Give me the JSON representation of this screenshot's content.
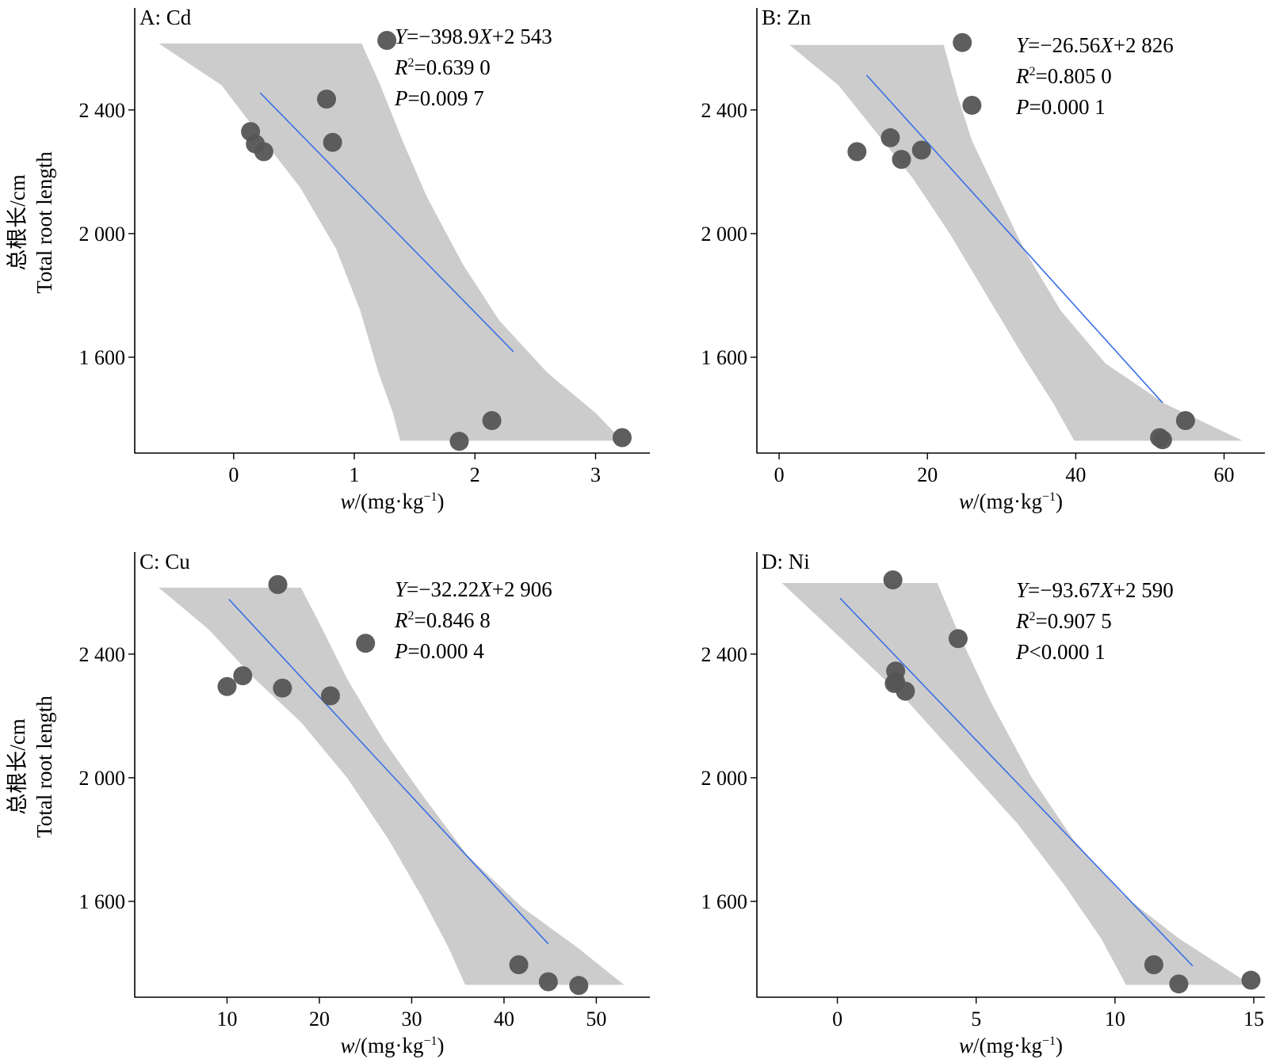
{
  "chart_data": [
    {
      "type": "scatter",
      "panel_label": "A: Cd",
      "xlabel_var": "w",
      "xlabel_unit": "/(mg·kg",
      "xlabel_exp": "−1",
      "xlabel_close": ")",
      "ylabel_cn": "总根长/cm",
      "ylabel_en": "Total root length",
      "xlim": [
        -0.82,
        3.45
      ],
      "ylim": [
        1290,
        2730
      ],
      "xticks": [
        0,
        1,
        2,
        3
      ],
      "xtick_labels": [
        "0",
        "1",
        "2",
        "3"
      ],
      "yticks": [
        1600,
        2000,
        2400
      ],
      "ytick_labels": [
        "1 600",
        "2 000",
        "2 400"
      ],
      "points": [
        {
          "x": 0.14,
          "y": 2330
        },
        {
          "x": 0.18,
          "y": 2290
        },
        {
          "x": 0.25,
          "y": 2265
        },
        {
          "x": 0.77,
          "y": 2435
        },
        {
          "x": 0.82,
          "y": 2295
        },
        {
          "x": 1.27,
          "y": 2625
        },
        {
          "x": 1.87,
          "y": 1328
        },
        {
          "x": 2.14,
          "y": 1395
        },
        {
          "x": 3.22,
          "y": 1340
        }
      ],
      "fit": {
        "slope": -398.9,
        "intercept": 2543,
        "x_range": [
          0.22,
          2.32
        ]
      },
      "band": {
        "upper": [
          [
            -0.62,
            2615
          ],
          [
            1.06,
            2615
          ],
          [
            1.2,
            2495
          ],
          [
            1.4,
            2300
          ],
          [
            1.6,
            2120
          ],
          [
            1.9,
            1900
          ],
          [
            2.2,
            1720
          ],
          [
            2.6,
            1550
          ],
          [
            3.0,
            1420
          ],
          [
            3.22,
            1330
          ]
        ],
        "lower": [
          [
            -0.62,
            2615
          ],
          [
            -0.1,
            2480
          ],
          [
            0.25,
            2300
          ],
          [
            0.55,
            2150
          ],
          [
            0.85,
            1950
          ],
          [
            1.05,
            1750
          ],
          [
            1.2,
            1550
          ],
          [
            1.32,
            1420
          ],
          [
            1.38,
            1330
          ],
          [
            3.22,
            1330
          ]
        ]
      },
      "equation": {
        "y_var": "Y",
        "rhs_pre": "=−398.9",
        "x_var": "X",
        "rhs_post": "+2 543"
      },
      "r2": {
        "var": "R",
        "sup": "2",
        "value": "=0.639 0"
      },
      "pval": {
        "var": "P",
        "value": "=0.009 7"
      },
      "colors": {
        "band": "#cccccc",
        "line": "#3b6fe6",
        "point": "#555555"
      }
    },
    {
      "type": "scatter",
      "panel_label": "B: Zn",
      "xlabel_var": "w",
      "xlabel_unit": "/(mg·kg",
      "xlabel_exp": "−1",
      "xlabel_close": ")",
      "ylabel_cn": "",
      "ylabel_en": "",
      "xlim": [
        -3.0,
        65.5
      ],
      "ylim": [
        1290,
        2730
      ],
      "xticks": [
        0,
        20,
        40,
        60
      ],
      "xtick_labels": [
        "0",
        "20",
        "40",
        "60"
      ],
      "yticks": [
        1600,
        2000,
        2400
      ],
      "ytick_labels": [
        "1 600",
        "2 000",
        "2 400"
      ],
      "points": [
        {
          "x": 10.5,
          "y": 2265
        },
        {
          "x": 15.0,
          "y": 2310
        },
        {
          "x": 16.5,
          "y": 2240
        },
        {
          "x": 19.2,
          "y": 2270
        },
        {
          "x": 24.7,
          "y": 2618
        },
        {
          "x": 26.0,
          "y": 2415
        },
        {
          "x": 51.3,
          "y": 1340
        },
        {
          "x": 51.7,
          "y": 1333
        },
        {
          "x": 54.8,
          "y": 1395
        }
      ],
      "fit": {
        "slope": -26.56,
        "intercept": 2826,
        "x_range": [
          11.8,
          51.7
        ]
      },
      "band": {
        "upper": [
          [
            1.4,
            2610
          ],
          [
            22.2,
            2610
          ],
          [
            24.0,
            2450
          ],
          [
            26.0,
            2300
          ],
          [
            29.0,
            2150
          ],
          [
            33.0,
            1950
          ],
          [
            38.0,
            1750
          ],
          [
            44.0,
            1580
          ],
          [
            52.0,
            1450
          ],
          [
            62.5,
            1330
          ]
        ],
        "lower": [
          [
            1.4,
            2610
          ],
          [
            8.0,
            2480
          ],
          [
            14.0,
            2300
          ],
          [
            18.0,
            2180
          ],
          [
            23.0,
            2000
          ],
          [
            28.0,
            1800
          ],
          [
            33.0,
            1600
          ],
          [
            37.0,
            1450
          ],
          [
            39.8,
            1330
          ],
          [
            62.5,
            1330
          ]
        ]
      },
      "equation": {
        "y_var": "Y",
        "rhs_pre": "=−26.56",
        "x_var": "X",
        "rhs_post": "+2 826"
      },
      "r2": {
        "var": "R",
        "sup": "2",
        "value": "=0.805 0"
      },
      "pval": {
        "var": "P",
        "value": "=0.000 1"
      },
      "colors": {
        "band": "#cccccc",
        "line": "#3b6fe6",
        "point": "#555555"
      }
    },
    {
      "type": "scatter",
      "panel_label": "C: Cu",
      "xlabel_var": "w",
      "xlabel_unit": "/(mg·kg",
      "xlabel_exp": "−1",
      "xlabel_close": ")",
      "ylabel_cn": "总根长/cm",
      "ylabel_en": "Total root length",
      "xlim": [
        0.0,
        55.8
      ],
      "ylim": [
        1290,
        2730
      ],
      "xticks": [
        10,
        20,
        30,
        40,
        50
      ],
      "xtick_labels": [
        "10",
        "20",
        "30",
        "40",
        "50"
      ],
      "yticks": [
        1600,
        2000,
        2400
      ],
      "ytick_labels": [
        "1 600",
        "2 000",
        "2 400"
      ],
      "points": [
        {
          "x": 10.0,
          "y": 2295
        },
        {
          "x": 11.7,
          "y": 2330
        },
        {
          "x": 15.5,
          "y": 2625
        },
        {
          "x": 16.0,
          "y": 2290
        },
        {
          "x": 21.2,
          "y": 2265
        },
        {
          "x": 25.0,
          "y": 2435
        },
        {
          "x": 41.6,
          "y": 1395
        },
        {
          "x": 44.8,
          "y": 1340
        },
        {
          "x": 48.1,
          "y": 1328
        }
      ],
      "fit": {
        "slope": -32.22,
        "intercept": 2906,
        "x_range": [
          10.2,
          44.8
        ]
      },
      "band": {
        "upper": [
          [
            2.6,
            2615
          ],
          [
            18.0,
            2615
          ],
          [
            20.0,
            2500
          ],
          [
            23.0,
            2320
          ],
          [
            27.0,
            2120
          ],
          [
            31.0,
            1950
          ],
          [
            36.0,
            1750
          ],
          [
            42.0,
            1580
          ],
          [
            48.0,
            1450
          ],
          [
            53.0,
            1330
          ]
        ],
        "lower": [
          [
            2.6,
            2615
          ],
          [
            8.0,
            2480
          ],
          [
            13.0,
            2320
          ],
          [
            18.0,
            2180
          ],
          [
            23.0,
            2000
          ],
          [
            27.5,
            1800
          ],
          [
            31.0,
            1620
          ],
          [
            34.0,
            1450
          ],
          [
            35.8,
            1330
          ],
          [
            53.0,
            1330
          ]
        ]
      },
      "equation": {
        "y_var": "Y",
        "rhs_pre": "=−32.22",
        "x_var": "X",
        "rhs_post": "+2 906"
      },
      "r2": {
        "var": "R",
        "sup": "2",
        "value": "=0.846 8"
      },
      "pval": {
        "var": "P",
        "value": "=0.000 4"
      },
      "colors": {
        "band": "#cccccc",
        "line": "#3b6fe6",
        "point": "#555555"
      }
    },
    {
      "type": "scatter",
      "panel_label": "D: Ni",
      "xlabel_var": "w",
      "xlabel_unit": "/(mg·kg",
      "xlabel_exp": "−1",
      "xlabel_close": ")",
      "ylabel_cn": "",
      "ylabel_en": "",
      "xlim": [
        -2.9,
        15.4
      ],
      "ylim": [
        1290,
        2730
      ],
      "xticks": [
        0,
        5,
        10,
        15
      ],
      "xtick_labels": [
        "0",
        "5",
        "10",
        "15"
      ],
      "yticks": [
        1600,
        2000,
        2400
      ],
      "ytick_labels": [
        "1 600",
        "2 000",
        "2 400"
      ],
      "points": [
        {
          "x": 2.0,
          "y": 2640
        },
        {
          "x": 2.05,
          "y": 2305
        },
        {
          "x": 2.1,
          "y": 2345
        },
        {
          "x": 2.1,
          "y": 2310
        },
        {
          "x": 2.45,
          "y": 2280
        },
        {
          "x": 4.35,
          "y": 2450
        },
        {
          "x": 11.4,
          "y": 1395
        },
        {
          "x": 12.3,
          "y": 1333
        },
        {
          "x": 14.9,
          "y": 1345
        }
      ],
      "fit": {
        "slope": -93.67,
        "intercept": 2590,
        "x_range": [
          0.1,
          12.8
        ]
      },
      "band": {
        "upper": [
          [
            -2.0,
            2630
          ],
          [
            3.6,
            2630
          ],
          [
            4.4,
            2460
          ],
          [
            5.5,
            2250
          ],
          [
            7.0,
            2000
          ],
          [
            8.5,
            1800
          ],
          [
            10.3,
            1620
          ],
          [
            12.3,
            1480
          ],
          [
            14.9,
            1330
          ]
        ],
        "lower": [
          [
            -2.0,
            2630
          ],
          [
            0.5,
            2420
          ],
          [
            2.5,
            2250
          ],
          [
            4.5,
            2050
          ],
          [
            6.5,
            1850
          ],
          [
            8.2,
            1650
          ],
          [
            9.5,
            1480
          ],
          [
            10.4,
            1330
          ],
          [
            14.9,
            1330
          ]
        ]
      },
      "equation": {
        "y_var": "Y",
        "rhs_pre": "=−93.67",
        "x_var": "X",
        "rhs_post": "+2 590"
      },
      "r2": {
        "var": "R",
        "sup": "2",
        "value": "=0.907 5"
      },
      "pval": {
        "var": "P",
        "value": "<0.000 1"
      },
      "colors": {
        "band": "#cccccc",
        "line": "#3b6fe6",
        "point": "#555555"
      }
    }
  ]
}
